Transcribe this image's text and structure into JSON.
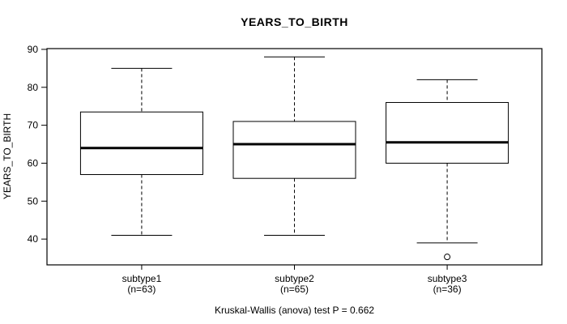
{
  "chart_data": {
    "type": "boxplot",
    "title": "YEARS_TO_BIRTH",
    "ylabel": "YEARS_TO_BIRTH",
    "annotation": "Kruskal-Wallis (anova) test P = 0.662",
    "p_value": 0.662,
    "yticks": [
      40,
      50,
      60,
      70,
      80,
      90
    ],
    "ylim": [
      33.2,
      90.2
    ],
    "grid": "off",
    "axis_color": "#000000",
    "box_fill": "#ffffff",
    "groups": [
      {
        "label": "subtype1",
        "sublabel": "(n=63)",
        "n": 63,
        "whisker_low": 41,
        "q1": 57,
        "median": 64,
        "q3": 73.5,
        "whisker_high": 85,
        "outliers": []
      },
      {
        "label": "subtype2",
        "sublabel": "(n=65)",
        "n": 65,
        "whisker_low": 41,
        "q1": 56,
        "median": 65,
        "q3": 71,
        "whisker_high": 88,
        "outliers": []
      },
      {
        "label": "subtype3",
        "sublabel": "(n=36)",
        "n": 36,
        "whisker_low": 39,
        "q1": 60,
        "median": 65.5,
        "q3": 76,
        "whisker_high": 82,
        "outliers": [
          35.3
        ]
      }
    ]
  }
}
